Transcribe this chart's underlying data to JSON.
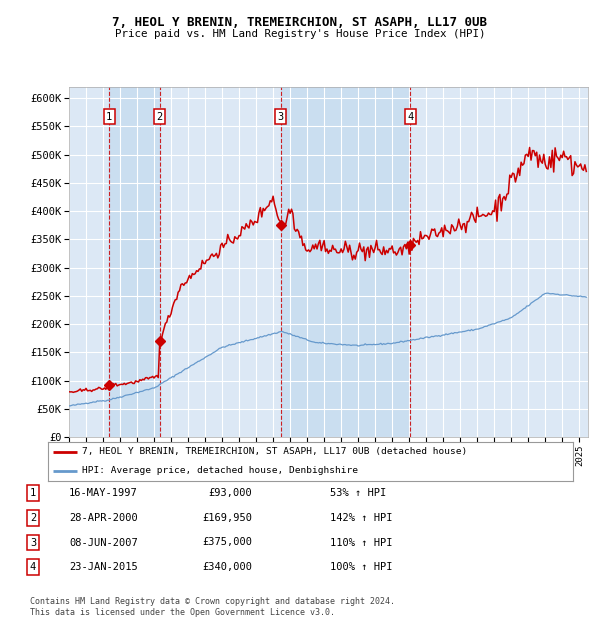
{
  "title": "7, HEOL Y BRENIN, TREMEIRCHION, ST ASAPH, LL17 0UB",
  "subtitle": "Price paid vs. HM Land Registry's House Price Index (HPI)",
  "ylim": [
    0,
    620000
  ],
  "yticks": [
    0,
    50000,
    100000,
    150000,
    200000,
    250000,
    300000,
    350000,
    400000,
    450000,
    500000,
    550000,
    600000
  ],
  "ytick_labels": [
    "£0",
    "£50K",
    "£100K",
    "£150K",
    "£200K",
    "£250K",
    "£300K",
    "£350K",
    "£400K",
    "£450K",
    "£500K",
    "£550K",
    "£600K"
  ],
  "xlim_start": 1995.0,
  "xlim_end": 2025.5,
  "background_color": "#ffffff",
  "plot_bg_color": "#dce8f5",
  "grid_color": "#ffffff",
  "transactions": [
    {
      "num": 1,
      "date_label": "16-MAY-1997",
      "year": 1997.37,
      "price": 93000,
      "pct": "53%"
    },
    {
      "num": 2,
      "date_label": "28-APR-2000",
      "year": 2000.33,
      "price": 169950,
      "pct": "142%"
    },
    {
      "num": 3,
      "date_label": "08-JUN-2007",
      "year": 2007.44,
      "price": 375000,
      "pct": "110%"
    },
    {
      "num": 4,
      "date_label": "23-JAN-2015",
      "year": 2015.06,
      "price": 340000,
      "pct": "100%"
    }
  ],
  "shaded_regions": [
    {
      "start": 1997.37,
      "end": 2000.33
    },
    {
      "start": 2007.44,
      "end": 2015.06
    }
  ],
  "legend_label_red": "7, HEOL Y BRENIN, TREMEIRCHION, ST ASAPH, LL17 0UB (detached house)",
  "legend_label_blue": "HPI: Average price, detached house, Denbighshire",
  "footer": "Contains HM Land Registry data © Crown copyright and database right 2024.\nThis data is licensed under the Open Government Licence v3.0.",
  "red_color": "#cc0000",
  "blue_color": "#6699cc"
}
